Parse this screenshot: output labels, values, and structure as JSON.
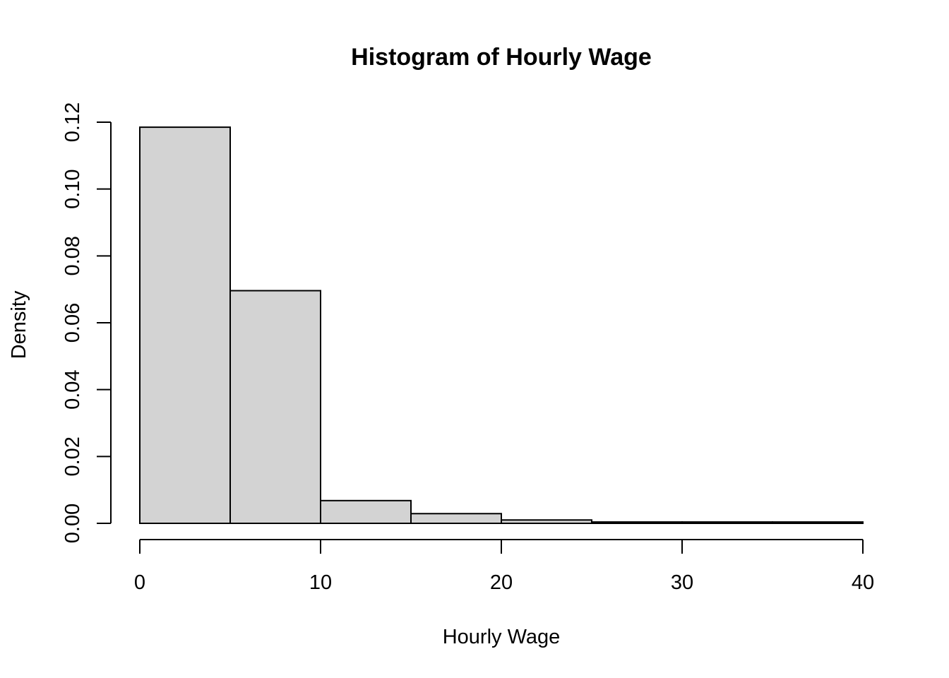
{
  "chart_data": {
    "type": "bar",
    "title": "Histogram of Hourly Wage",
    "xlabel": "Hourly Wage",
    "ylabel": "Density",
    "bins": [
      {
        "x0": 0,
        "x1": 5,
        "density": 0.1185
      },
      {
        "x0": 5,
        "x1": 10,
        "density": 0.0696
      },
      {
        "x0": 10,
        "x1": 15,
        "density": 0.0068
      },
      {
        "x0": 15,
        "x1": 20,
        "density": 0.0029
      },
      {
        "x0": 20,
        "x1": 25,
        "density": 0.001
      },
      {
        "x0": 25,
        "x1": 30,
        "density": 0.0004
      },
      {
        "x0": 30,
        "x1": 35,
        "density": 0.0004
      },
      {
        "x0": 35,
        "x1": 40,
        "density": 0.0004
      }
    ],
    "xlim": [
      0,
      40
    ],
    "ylim": [
      0,
      0.12
    ],
    "xticks": [
      "0",
      "10",
      "20",
      "30",
      "40"
    ],
    "yticks": [
      "0.00",
      "0.02",
      "0.04",
      "0.06",
      "0.08",
      "0.10",
      "0.12"
    ],
    "bar_fill": "#d3d3d3",
    "bar_stroke": "#000000",
    "grid": false,
    "legend": "none"
  }
}
